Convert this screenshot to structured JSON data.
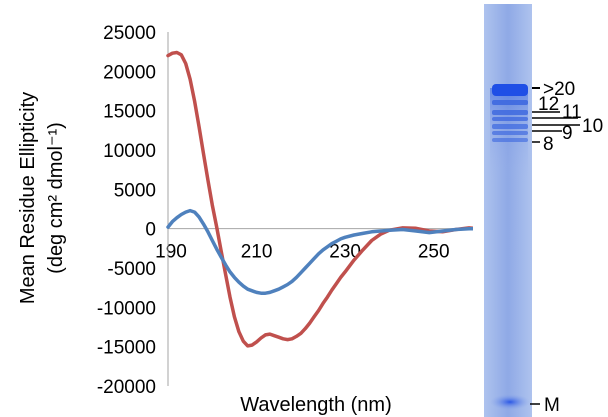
{
  "chart_data": {
    "type": "line",
    "xlabel": "Wavelength (nm)",
    "ylabel_line1": "Mean Residue Ellipticity",
    "ylabel_line2": "(deg cm² dmol⁻¹)",
    "xlim": [
      190,
      260
    ],
    "ylim": [
      -20000,
      25000
    ],
    "x_ticks": [
      190,
      210,
      230,
      250
    ],
    "x_tick_labels": [
      "190",
      "210",
      "230",
      "250"
    ],
    "y_ticks": [
      25000,
      20000,
      15000,
      10000,
      5000,
      0,
      -5000,
      -10000,
      -15000,
      -20000
    ],
    "y_tick_labels": [
      "25000",
      "20000",
      "15000",
      "10000",
      "5000",
      "0",
      "-5000",
      "-10000",
      "-15000",
      "-20000"
    ],
    "grid": false,
    "series": [
      {
        "color": "#c0504d",
        "x": [
          190,
          191,
          192,
          193,
          194,
          195,
          196,
          197,
          198,
          199,
          200,
          201,
          202,
          203,
          204,
          205,
          206,
          207,
          208,
          209,
          210,
          211,
          212,
          213,
          214,
          215,
          216,
          217,
          218,
          219,
          220,
          221,
          222,
          223,
          224,
          225,
          226,
          227,
          228,
          229,
          230,
          232,
          234,
          236,
          238,
          240,
          243,
          246,
          249,
          252,
          255,
          258,
          260
        ],
        "values": [
          22000,
          22300,
          22400,
          22100,
          21000,
          19000,
          16200,
          13000,
          9600,
          6200,
          3000,
          200,
          -2800,
          -5800,
          -8700,
          -11200,
          -13100,
          -14300,
          -14900,
          -14800,
          -14400,
          -13900,
          -13500,
          -13400,
          -13600,
          -13800,
          -14000,
          -14100,
          -14000,
          -13700,
          -13300,
          -12700,
          -12000,
          -11200,
          -10400,
          -9500,
          -8700,
          -7800,
          -7000,
          -6200,
          -5500,
          -4000,
          -2700,
          -1500,
          -700,
          -200,
          100,
          50,
          -300,
          -400,
          -100,
          100,
          0
        ]
      },
      {
        "color": "#4f81bd",
        "x": [
          190,
          191,
          192,
          193,
          194,
          195,
          196,
          197,
          198,
          199,
          200,
          201,
          202,
          203,
          204,
          205,
          206,
          207,
          208,
          209,
          210,
          211,
          212,
          213,
          214,
          215,
          216,
          217,
          218,
          219,
          220,
          221,
          222,
          223,
          224,
          225,
          226,
          227,
          228,
          229,
          230,
          232,
          234,
          236,
          238,
          240,
          243,
          246,
          249,
          252,
          255,
          258,
          260
        ],
        "values": [
          200,
          900,
          1400,
          1800,
          2100,
          2300,
          2100,
          1500,
          600,
          -400,
          -1500,
          -2600,
          -3600,
          -4600,
          -5500,
          -6200,
          -6800,
          -7300,
          -7700,
          -7900,
          -8100,
          -8200,
          -8200,
          -8100,
          -7900,
          -7700,
          -7400,
          -7100,
          -6700,
          -6200,
          -5600,
          -5000,
          -4400,
          -3800,
          -3200,
          -2700,
          -2300,
          -1900,
          -1600,
          -1300,
          -1100,
          -800,
          -600,
          -400,
          -300,
          -200,
          -100,
          -300,
          -500,
          -300,
          -100,
          0,
          0
        ]
      }
    ]
  },
  "gel": {
    "band_labels": [
      ">20",
      "12",
      "11",
      "10",
      "9",
      "8",
      "M"
    ]
  }
}
